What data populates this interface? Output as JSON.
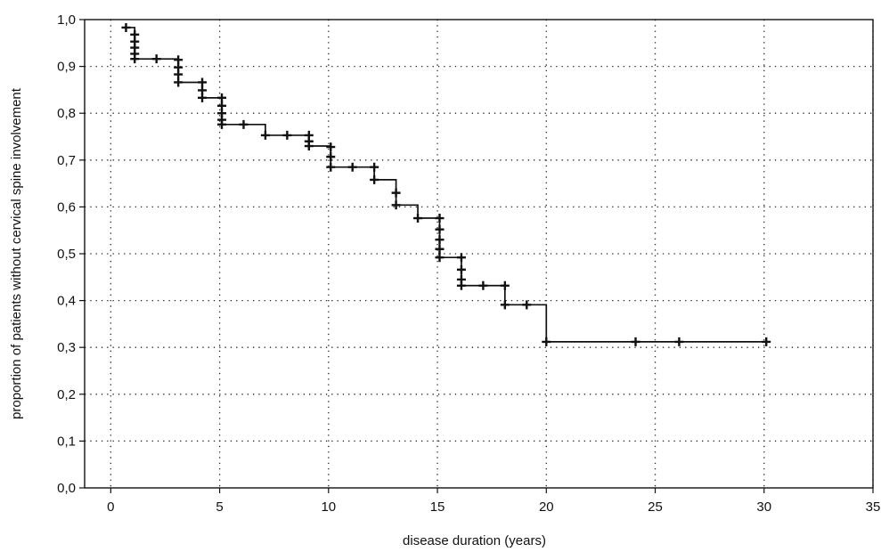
{
  "chart_data": {
    "type": "line",
    "title": "",
    "xlabel": "disease duration (years)",
    "ylabel": "proportion of patients without cervical spine involvement",
    "xlim": [
      -1.2,
      35
    ],
    "ylim": [
      0,
      1.0
    ],
    "xticks": [
      0,
      5,
      10,
      15,
      20,
      25,
      30,
      35
    ],
    "xtick_labels": [
      "0",
      "5",
      "10",
      "15",
      "20",
      "25",
      "30",
      "35"
    ],
    "yticks": [
      0,
      0.1,
      0.2,
      0.3,
      0.4,
      0.5,
      0.6,
      0.7,
      0.8,
      0.9,
      1.0
    ],
    "ytick_labels": [
      "0,0",
      "0,1",
      "0,2",
      "0,3",
      "0,4",
      "0,5",
      "0,6",
      "0,7",
      "0,8",
      "0,9",
      "1,0"
    ],
    "grid": true,
    "step_curve": {
      "x": [
        0.7,
        1.1,
        3.1,
        4.2,
        5.1,
        7.1,
        9.1,
        10.1,
        12.1,
        13.1,
        14.1,
        15.1,
        16.1,
        18.1,
        20.0,
        30.1
      ],
      "y": [
        0.983,
        0.916,
        0.866,
        0.833,
        0.776,
        0.753,
        0.73,
        0.685,
        0.658,
        0.604,
        0.576,
        0.492,
        0.432,
        0.391,
        0.312,
        0.312
      ]
    },
    "censored_points": {
      "x": [
        0.7,
        1.1,
        1.1,
        1.1,
        1.1,
        1.1,
        2.1,
        3.1,
        3.1,
        3.1,
        3.1,
        4.2,
        4.2,
        4.2,
        5.1,
        5.1,
        5.1,
        5.1,
        5.1,
        6.1,
        7.1,
        8.1,
        9.1,
        9.1,
        9.1,
        10.1,
        10.1,
        10.1,
        11.1,
        12.1,
        12.1,
        13.1,
        13.1,
        14.1,
        15.1,
        15.1,
        15.1,
        15.1,
        15.1,
        16.1,
        16.1,
        16.1,
        16.1,
        17.1,
        18.1,
        18.1,
        19.1,
        20.0,
        24.1,
        26.1,
        30.1
      ],
      "y": [
        0.983,
        0.968,
        0.953,
        0.94,
        0.927,
        0.916,
        0.916,
        0.914,
        0.898,
        0.883,
        0.866,
        0.866,
        0.849,
        0.833,
        0.833,
        0.816,
        0.8,
        0.786,
        0.776,
        0.776,
        0.753,
        0.753,
        0.753,
        0.74,
        0.73,
        0.728,
        0.707,
        0.685,
        0.685,
        0.685,
        0.658,
        0.63,
        0.604,
        0.576,
        0.576,
        0.552,
        0.53,
        0.51,
        0.492,
        0.492,
        0.466,
        0.445,
        0.432,
        0.432,
        0.432,
        0.391,
        0.391,
        0.312,
        0.312,
        0.312,
        0.312
      ]
    }
  }
}
